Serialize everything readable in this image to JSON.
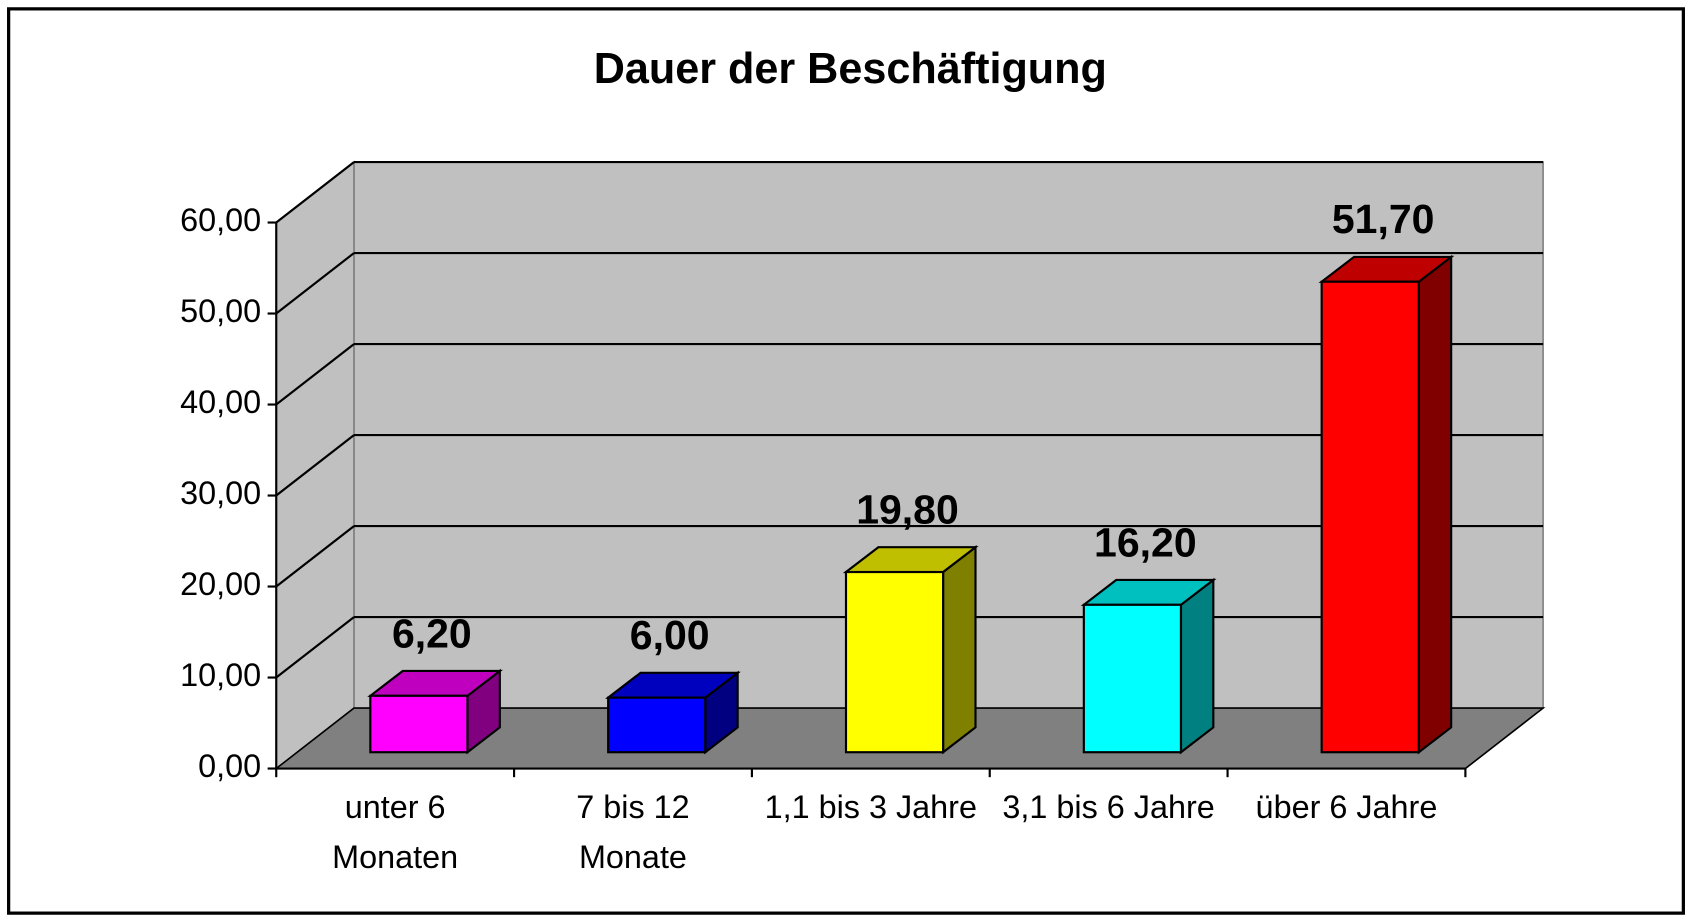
{
  "chart_data": {
    "type": "bar3d",
    "title": "Dauer der Beschäftigung",
    "categories": [
      "unter 6 Monaten",
      "7 bis 12 Monate",
      "1,1 bis 3 Jahre",
      "3,1 bis 6 Jahre",
      "über 6 Jahre"
    ],
    "values": [
      6.2,
      6.0,
      19.8,
      16.2,
      51.7
    ],
    "value_labels": [
      "6,20",
      "6,00",
      "19,80",
      "16,20",
      "51,70"
    ],
    "colors": [
      "#ff00ff",
      "#0000ff",
      "#ffff00",
      "#00ffff",
      "#ff0000"
    ],
    "ylim": [
      0,
      60
    ],
    "yticks": [
      {
        "value": 0,
        "label": "0,00"
      },
      {
        "value": 10,
        "label": "10,00"
      },
      {
        "value": 20,
        "label": "20,00"
      },
      {
        "value": 30,
        "label": "30,00"
      },
      {
        "value": 40,
        "label": "40,00"
      },
      {
        "value": 50,
        "label": "50,00"
      },
      {
        "value": 60,
        "label": "60,00"
      }
    ],
    "grid": true
  }
}
